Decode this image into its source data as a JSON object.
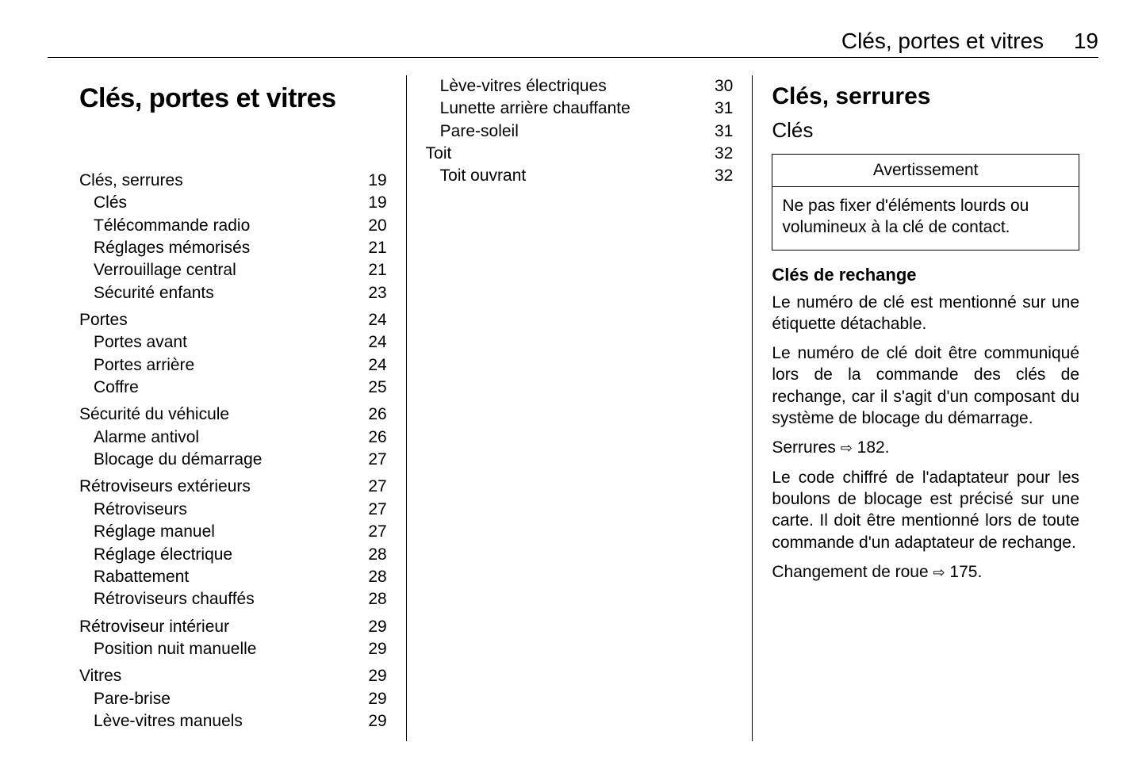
{
  "running_head": {
    "title": "Clés, portes et vitres",
    "page": "19"
  },
  "main_title": "Clés, portes et vitres",
  "toc_col1": [
    {
      "group": true,
      "label": "Clés, serrures",
      "page": "19"
    },
    {
      "sub": true,
      "label": "Clés",
      "page": "19"
    },
    {
      "sub": true,
      "label": "Télécommande radio",
      "page": "20"
    },
    {
      "sub": true,
      "label": "Réglages mémorisés",
      "page": "21"
    },
    {
      "sub": true,
      "label": "Verrouillage central",
      "page": "21"
    },
    {
      "sub": true,
      "label": "Sécurité enfants",
      "page": "23",
      "break": true
    },
    {
      "group": true,
      "label": "Portes",
      "page": "24"
    },
    {
      "sub": true,
      "label": "Portes avant",
      "page": "24"
    },
    {
      "sub": true,
      "label": "Portes arrière",
      "page": "24"
    },
    {
      "sub": true,
      "label": "Coffre",
      "page": "25",
      "break": true
    },
    {
      "group": true,
      "label": "Sécurité du véhicule",
      "page": "26"
    },
    {
      "sub": true,
      "label": "Alarme antivol",
      "page": "26"
    },
    {
      "sub": true,
      "label": "Blocage du démarrage",
      "page": "27",
      "break": true
    },
    {
      "group": true,
      "label": "Rétroviseurs extérieurs",
      "page": "27"
    },
    {
      "sub": true,
      "label": "Rétroviseurs",
      "page": "27"
    },
    {
      "sub": true,
      "label": "Réglage manuel",
      "page": "27"
    },
    {
      "sub": true,
      "label": "Réglage électrique",
      "page": "28"
    },
    {
      "sub": true,
      "label": "Rabattement",
      "page": "28"
    },
    {
      "sub": true,
      "label": "Rétroviseurs chauffés",
      "page": "28",
      "break": true
    },
    {
      "group": true,
      "label": "Rétroviseur intérieur",
      "page": "29"
    },
    {
      "sub": true,
      "label": "Position nuit manuelle",
      "page": "29",
      "break": true
    },
    {
      "group": true,
      "label": "Vitres",
      "page": "29"
    },
    {
      "sub": true,
      "label": "Pare-brise",
      "page": "29"
    },
    {
      "sub": true,
      "label": "Lève-vitres manuels",
      "page": "29"
    }
  ],
  "toc_col2": [
    {
      "sub": true,
      "label": "Lève-vitres électriques",
      "page": "30"
    },
    {
      "sub": true,
      "label": "Lunette arrière chauffante",
      "page": "31"
    },
    {
      "sub": true,
      "label": "Pare-soleil",
      "page": "31",
      "break": true
    },
    {
      "group": true,
      "label": "Toit",
      "page": "32"
    },
    {
      "sub": true,
      "label": "Toit ouvrant",
      "page": "32"
    }
  ],
  "col3": {
    "section_title": "Clés, serrures",
    "subsection_title": "Clés",
    "warning_head": "Avertissement",
    "warning_body": "Ne pas fixer d'éléments lourds ou volumineux à la clé de contact.",
    "h3": "Clés de rechange",
    "p1": "Le numéro de clé est mentionné sur une étiquette détachable.",
    "p2": "Le numéro de clé doit être communi­qué lors de la commande des clés de rechange, car il s'agit d'un composant du système de blocage du démar­rage.",
    "p3_a": "Serrures ",
    "p3_ref": "182.",
    "p4": "Le code chiffré de l'adaptateur pour les boulons de blocage est précisé sur une carte. Il doit être mentionné lors de toute commande d'un adapta­teur de rechange.",
    "p5_a": "Changement de roue ",
    "p5_ref": "175."
  },
  "arrow": "⇨"
}
